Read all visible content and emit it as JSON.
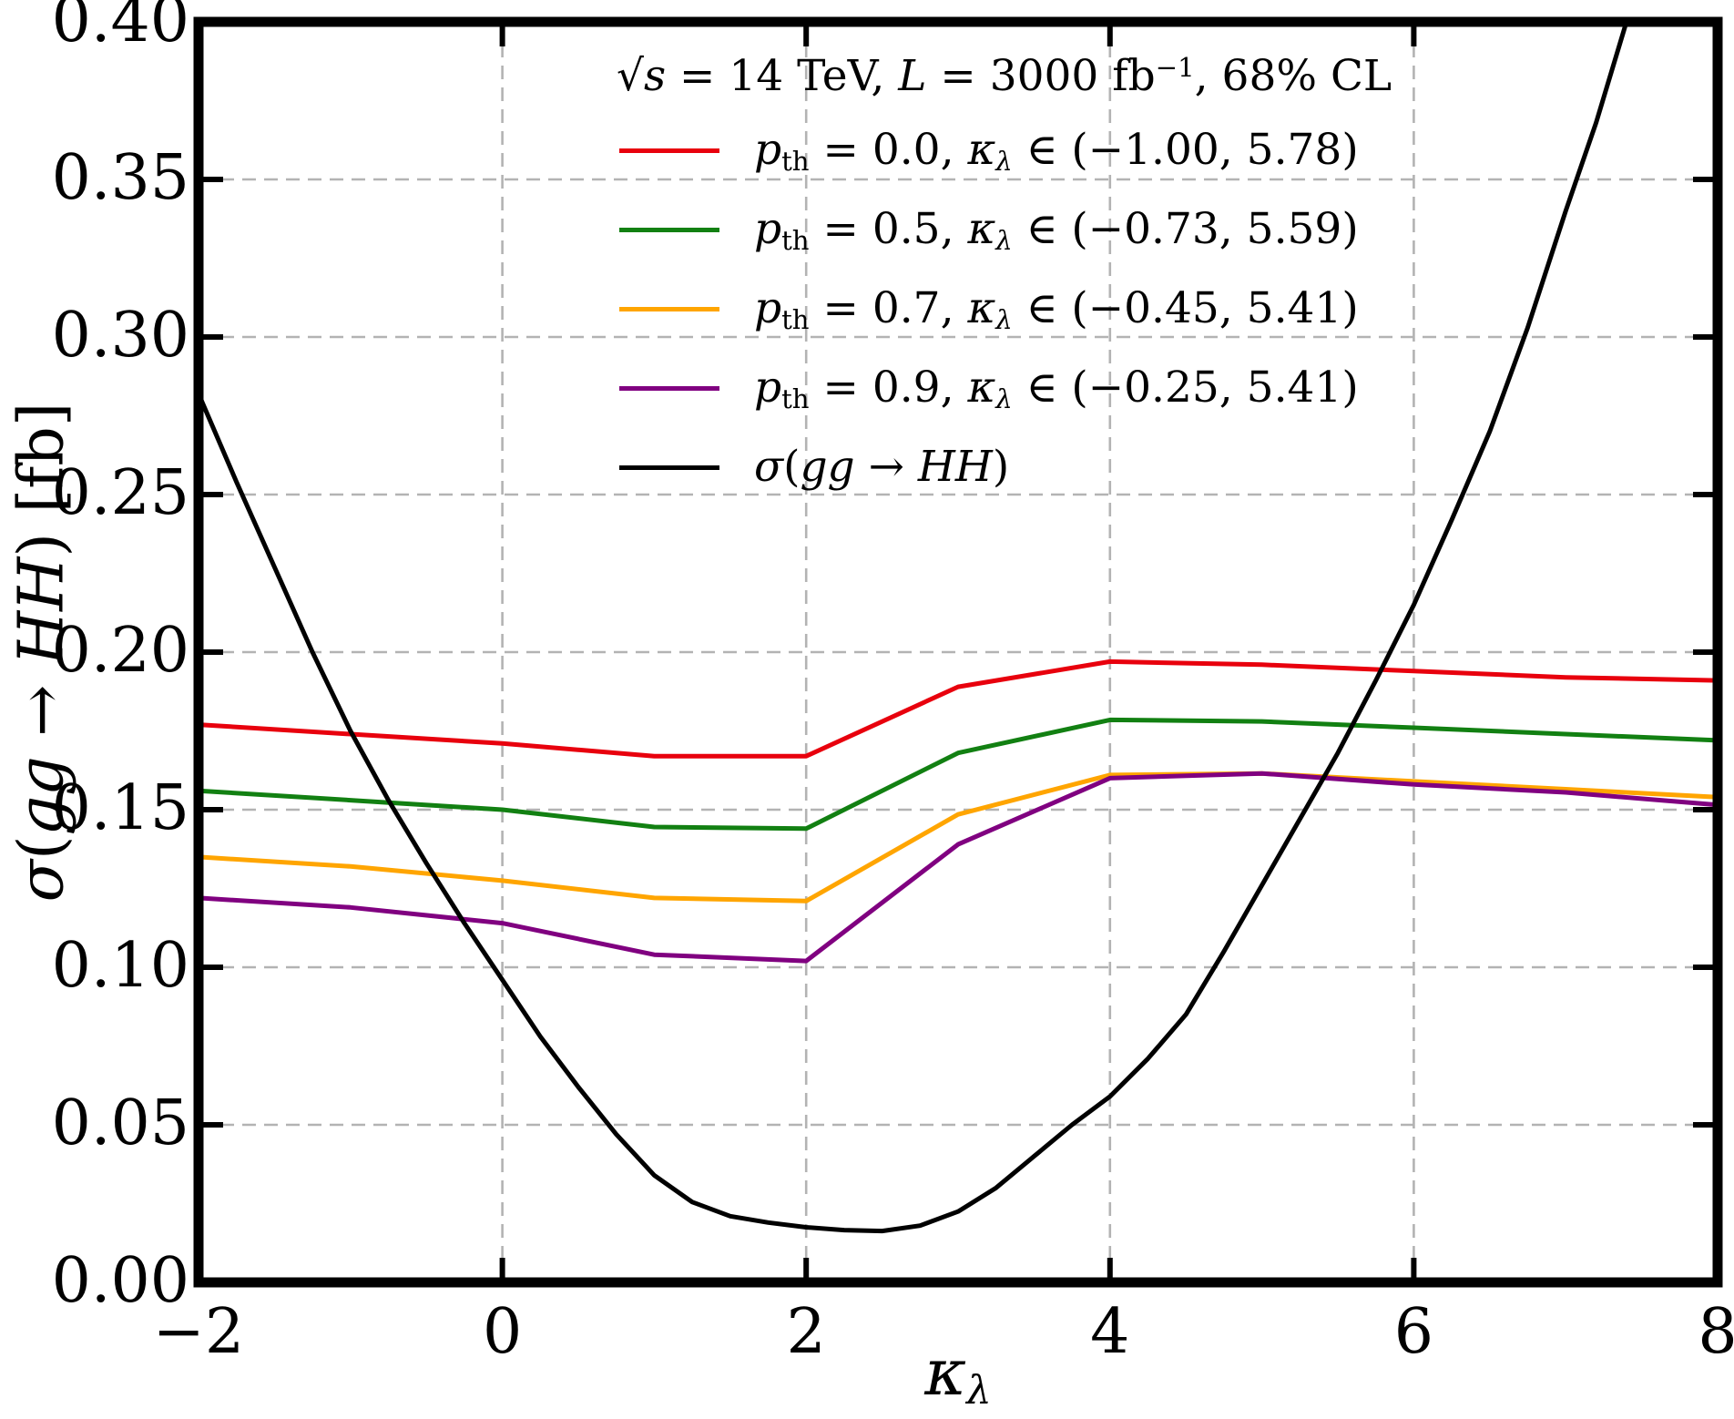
{
  "figure": {
    "background": "#ffffff",
    "frame_color": "#000000",
    "grid_color": "#b3b3b3"
  },
  "axes": {
    "x": {
      "label_parts": [
        {
          "t": "κ",
          "s": "it"
        },
        {
          "t": "λ",
          "s": "subit"
        }
      ],
      "ticks": [
        {
          "v": -2,
          "label": "−2"
        },
        {
          "v": 0,
          "label": "0"
        },
        {
          "v": 2,
          "label": "2"
        },
        {
          "v": 4,
          "label": "4"
        },
        {
          "v": 6,
          "label": "6"
        },
        {
          "v": 8,
          "label": "8"
        }
      ]
    },
    "y": {
      "label_parts": [
        {
          "t": "σ",
          "s": "it"
        },
        {
          "t": "(",
          "s": "n"
        },
        {
          "t": "gg",
          "s": "it"
        },
        {
          "t": " → ",
          "s": "n"
        },
        {
          "t": "HH",
          "s": "it"
        },
        {
          "t": ") [fb]",
          "s": "n"
        }
      ],
      "ticks": [
        {
          "v": 0.0,
          "label": "0.00"
        },
        {
          "v": 0.05,
          "label": "0.05"
        },
        {
          "v": 0.1,
          "label": "0.10"
        },
        {
          "v": 0.15,
          "label": "0.15"
        },
        {
          "v": 0.2,
          "label": "0.20"
        },
        {
          "v": 0.25,
          "label": "0.25"
        },
        {
          "v": 0.3,
          "label": "0.30"
        },
        {
          "v": 0.35,
          "label": "0.35"
        },
        {
          "v": 0.4,
          "label": "0.40"
        }
      ]
    }
  },
  "legend": {
    "title_text": "√s = 14 TeV, L = 3000 fb−1, 68% CL",
    "title_parts": [
      {
        "t": "√",
        "s": "n"
      },
      {
        "t": "s",
        "s": "it"
      },
      {
        "t": " = 14 TeV, ",
        "s": "n"
      },
      {
        "t": "L",
        "s": "script"
      },
      {
        "t": " = 3000 fb",
        "s": "n"
      },
      {
        "t": "−1",
        "s": "sup"
      },
      {
        "t": ", 68% CL",
        "s": "n"
      }
    ],
    "entries": [
      {
        "color": "#e8000d",
        "text": "p_th = 0.0, κ_λ ∈ (−1.00, 5.78)",
        "parts": [
          {
            "t": "p",
            "s": "it"
          },
          {
            "t": "th",
            "s": "sub"
          },
          {
            "t": " = 0.0, ",
            "s": "n"
          },
          {
            "t": "κ",
            "s": "it"
          },
          {
            "t": "λ",
            "s": "subit"
          },
          {
            "t": " ∈ (−1.00, 5.78)",
            "s": "n"
          }
        ]
      },
      {
        "color": "#128012",
        "text": "p_th = 0.5, κ_λ ∈ (−0.73, 5.59)",
        "parts": [
          {
            "t": "p",
            "s": "it"
          },
          {
            "t": "th",
            "s": "sub"
          },
          {
            "t": " = 0.5, ",
            "s": "n"
          },
          {
            "t": "κ",
            "s": "it"
          },
          {
            "t": "λ",
            "s": "subit"
          },
          {
            "t": " ∈ (−0.73, 5.59)",
            "s": "n"
          }
        ]
      },
      {
        "color": "#ffa500",
        "text": "p_th = 0.7, κ_λ ∈ (−0.45, 5.41)",
        "parts": [
          {
            "t": "p",
            "s": "it"
          },
          {
            "t": "th",
            "s": "sub"
          },
          {
            "t": " = 0.7, ",
            "s": "n"
          },
          {
            "t": "κ",
            "s": "it"
          },
          {
            "t": "λ",
            "s": "subit"
          },
          {
            "t": " ∈ (−0.45, 5.41)",
            "s": "n"
          }
        ]
      },
      {
        "color": "#800080",
        "text": "p_th = 0.9, κ_λ ∈ (−0.25, 5.41)",
        "parts": [
          {
            "t": "p",
            "s": "it"
          },
          {
            "t": "th",
            "s": "sub"
          },
          {
            "t": " = 0.9, ",
            "s": "n"
          },
          {
            "t": "κ",
            "s": "it"
          },
          {
            "t": "λ",
            "s": "subit"
          },
          {
            "t": " ∈ (−0.25, 5.41)",
            "s": "n"
          }
        ]
      },
      {
        "color": "#000000",
        "text": "σ(gg → HH)",
        "parts": [
          {
            "t": "σ",
            "s": "it"
          },
          {
            "t": "(",
            "s": "n"
          },
          {
            "t": "gg",
            "s": "it"
          },
          {
            "t": " → ",
            "s": "n"
          },
          {
            "t": "HH",
            "s": "it"
          },
          {
            "t": ")",
            "s": "n"
          }
        ]
      }
    ]
  },
  "chart_data": {
    "type": "line",
    "title": "sqrt(s) = 14 TeV, L = 3000 fb^-1, 68% CL",
    "xlabel": "kappa_lambda",
    "ylabel": "sigma(gg -> HH) [fb]",
    "xlim": [
      -2,
      8
    ],
    "ylim": [
      0,
      0.4
    ],
    "xticks": [
      -2,
      0,
      2,
      4,
      6,
      8
    ],
    "yticks": [
      0.0,
      0.05,
      0.1,
      0.15,
      0.2,
      0.25,
      0.3,
      0.35,
      0.4
    ],
    "grid": true,
    "grid_style": "dashed",
    "legend_position": "upper center",
    "series": [
      {
        "name": "p_th = 0.0, kappa_lambda in (-1.00, 5.78)",
        "color": "#e8000d",
        "x": [
          -2,
          -1,
          0,
          1,
          2,
          3,
          4,
          5,
          6,
          7,
          8
        ],
        "y": [
          0.177,
          0.174,
          0.171,
          0.167,
          0.167,
          0.189,
          0.197,
          0.196,
          0.194,
          0.192,
          0.191
        ]
      },
      {
        "name": "p_th = 0.5, kappa_lambda in (-0.73, 5.59)",
        "color": "#128012",
        "x": [
          -2,
          -1,
          0,
          1,
          2,
          3,
          4,
          5,
          6,
          7,
          8
        ],
        "y": [
          0.156,
          0.153,
          0.15,
          0.1445,
          0.144,
          0.168,
          0.1785,
          0.178,
          0.176,
          0.174,
          0.172
        ]
      },
      {
        "name": "p_th = 0.7, kappa_lambda in (-0.45, 5.41)",
        "color": "#ffa500",
        "x": [
          -2,
          -1,
          0,
          1,
          2,
          3,
          4,
          5,
          6,
          7,
          8
        ],
        "y": [
          0.135,
          0.132,
          0.1275,
          0.122,
          0.121,
          0.1485,
          0.161,
          0.1615,
          0.159,
          0.1565,
          0.154
        ]
      },
      {
        "name": "p_th = 0.9, kappa_lambda in (-0.25, 5.41)",
        "color": "#800080",
        "x": [
          -2,
          -1,
          0,
          1,
          2,
          3,
          4,
          5,
          6,
          7,
          8
        ],
        "y": [
          0.122,
          0.119,
          0.114,
          0.104,
          0.102,
          0.139,
          0.16,
          0.1615,
          0.158,
          0.1555,
          0.1515
        ]
      },
      {
        "name": "sigma(gg -> HH)",
        "color": "#000000",
        "x": [
          -2,
          -1.75,
          -1.5,
          -1.25,
          -1,
          -0.75,
          -0.5,
          -0.25,
          0,
          0.25,
          0.5,
          0.75,
          1,
          1.25,
          1.5,
          1.75,
          2,
          2.25,
          2.5,
          2.75,
          3,
          3.25,
          3.5,
          3.75,
          4,
          4.25,
          4.5,
          4.75,
          5,
          5.25,
          5.5,
          5.75,
          6,
          6.25,
          6.5,
          6.75,
          7,
          7.2,
          7.4
        ],
        "y": [
          0.282,
          0.254,
          0.227,
          0.2,
          0.175,
          0.153,
          0.133,
          0.114,
          0.096,
          0.078,
          0.062,
          0.047,
          0.034,
          0.0255,
          0.021,
          0.019,
          0.0175,
          0.0166,
          0.0163,
          0.018,
          0.0225,
          0.03,
          0.04,
          0.05,
          0.059,
          0.071,
          0.085,
          0.105,
          0.126,
          0.147,
          0.168,
          0.191,
          0.215,
          0.242,
          0.27,
          0.303,
          0.34,
          0.368,
          0.4
        ]
      }
    ]
  }
}
